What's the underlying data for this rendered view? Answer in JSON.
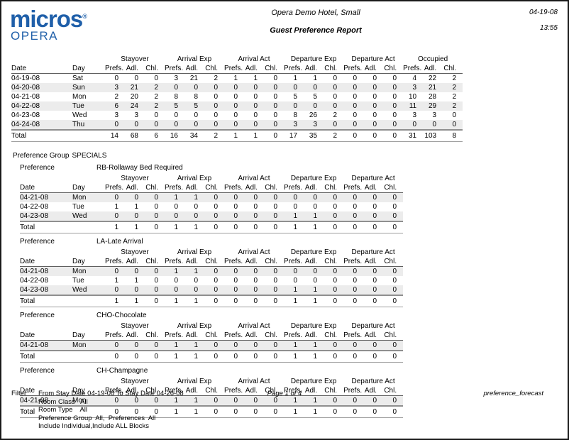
{
  "colors": {
    "brand_blue": "#1f5fa9",
    "row_stripe": "#ececec"
  },
  "header": {
    "logo_brand": "micros",
    "logo_registered": "®",
    "logo_sub": "OPERA",
    "hotel_name": "Opera Demo Hotel, Small",
    "report_title": "Guest Preference Report",
    "date": "04-19-08",
    "time": "13:55"
  },
  "columns": {
    "date": "Date",
    "day": "Day",
    "sub": [
      "Prefs.",
      "Adl.",
      "Chl."
    ],
    "groups": [
      "Stayover",
      "Arrival Exp",
      "Arrival Act",
      "Departure Exp",
      "Departure Act",
      "Occupied"
    ]
  },
  "labels": {
    "total": "Total"
  },
  "summary_table": {
    "rows": [
      {
        "date": "04-19-08",
        "day": "Sat",
        "values": [
          0,
          0,
          0,
          3,
          21,
          2,
          1,
          1,
          0,
          1,
          1,
          0,
          0,
          0,
          0,
          4,
          22,
          2
        ]
      },
      {
        "date": "04-20-08",
        "day": "Sun",
        "values": [
          3,
          21,
          2,
          0,
          0,
          0,
          0,
          0,
          0,
          0,
          0,
          0,
          0,
          0,
          0,
          3,
          21,
          2
        ]
      },
      {
        "date": "04-21-08",
        "day": "Mon",
        "values": [
          2,
          20,
          2,
          8,
          8,
          0,
          0,
          0,
          0,
          5,
          5,
          0,
          0,
          0,
          0,
          10,
          28,
          2
        ]
      },
      {
        "date": "04-22-08",
        "day": "Tue",
        "values": [
          6,
          24,
          2,
          5,
          5,
          0,
          0,
          0,
          0,
          0,
          0,
          0,
          0,
          0,
          0,
          11,
          29,
          2
        ]
      },
      {
        "date": "04-23-08",
        "day": "Wed",
        "values": [
          3,
          3,
          0,
          0,
          0,
          0,
          0,
          0,
          0,
          8,
          26,
          2,
          0,
          0,
          0,
          3,
          3,
          0
        ]
      },
      {
        "date": "04-24-08",
        "day": "Thu",
        "values": [
          0,
          0,
          0,
          0,
          0,
          0,
          0,
          0,
          0,
          3,
          3,
          0,
          0,
          0,
          0,
          0,
          0,
          0
        ]
      }
    ],
    "total": [
      14,
      68,
      6,
      16,
      34,
      2,
      1,
      1,
      0,
      17,
      35,
      2,
      0,
      0,
      0,
      31,
      103,
      8
    ]
  },
  "sections": {
    "preference_group_label": "Preference Group",
    "preference_group_value": "SPECIALS",
    "preference_label": "Preference"
  },
  "preference_tables": [
    {
      "name": "RB-Rollaway Bed Required",
      "rows": [
        {
          "date": "04-21-08",
          "day": "Mon",
          "values": [
            0,
            0,
            0,
            1,
            1,
            0,
            0,
            0,
            0,
            0,
            0,
            0,
            0,
            0,
            0
          ]
        },
        {
          "date": "04-22-08",
          "day": "Tue",
          "values": [
            1,
            1,
            0,
            0,
            0,
            0,
            0,
            0,
            0,
            0,
            0,
            0,
            0,
            0,
            0
          ]
        },
        {
          "date": "04-23-08",
          "day": "Wed",
          "values": [
            0,
            0,
            0,
            0,
            0,
            0,
            0,
            0,
            0,
            1,
            1,
            0,
            0,
            0,
            0
          ]
        }
      ],
      "total": [
        1,
        1,
        0,
        1,
        1,
        0,
        0,
        0,
        0,
        1,
        1,
        0,
        0,
        0,
        0
      ]
    },
    {
      "name": "LA-Late Arrival",
      "rows": [
        {
          "date": "04-21-08",
          "day": "Mon",
          "values": [
            0,
            0,
            0,
            1,
            1,
            0,
            0,
            0,
            0,
            0,
            0,
            0,
            0,
            0,
            0
          ]
        },
        {
          "date": "04-22-08",
          "day": "Tue",
          "values": [
            1,
            1,
            0,
            0,
            0,
            0,
            0,
            0,
            0,
            0,
            0,
            0,
            0,
            0,
            0
          ]
        },
        {
          "date": "04-23-08",
          "day": "Wed",
          "values": [
            0,
            0,
            0,
            0,
            0,
            0,
            0,
            0,
            0,
            1,
            1,
            0,
            0,
            0,
            0
          ]
        }
      ],
      "total": [
        1,
        1,
        0,
        1,
        1,
        0,
        0,
        0,
        0,
        1,
        1,
        0,
        0,
        0,
        0
      ]
    },
    {
      "name": "CHO-Chocolate",
      "rows": [
        {
          "date": "04-21-08",
          "day": "Mon",
          "values": [
            0,
            0,
            0,
            1,
            1,
            0,
            0,
            0,
            0,
            1,
            1,
            0,
            0,
            0,
            0
          ]
        }
      ],
      "total": [
        0,
        0,
        0,
        1,
        1,
        0,
        0,
        0,
        0,
        1,
        1,
        0,
        0,
        0,
        0
      ]
    },
    {
      "name": "CH-Champagne",
      "rows": [
        {
          "date": "04-21-08",
          "day": "Mon",
          "values": [
            0,
            0,
            0,
            1,
            1,
            0,
            0,
            0,
            0,
            1,
            1,
            0,
            0,
            0,
            0
          ]
        }
      ],
      "total": [
        0,
        0,
        0,
        1,
        1,
        0,
        0,
        0,
        0,
        1,
        1,
        0,
        0,
        0,
        0
      ]
    }
  ],
  "footer": {
    "filter_label": "Filter",
    "filter_lines": [
      "From Stay Date 04-19-08 To Stay Date 04-26-08",
      "Room Class   All",
      "Room Type    All",
      "Preference Group  All,  Preferences  All",
      "Include Individual,Include ALL Blocks"
    ],
    "page_number": "Page 1 of 4",
    "report_id": "preference_forecast"
  }
}
